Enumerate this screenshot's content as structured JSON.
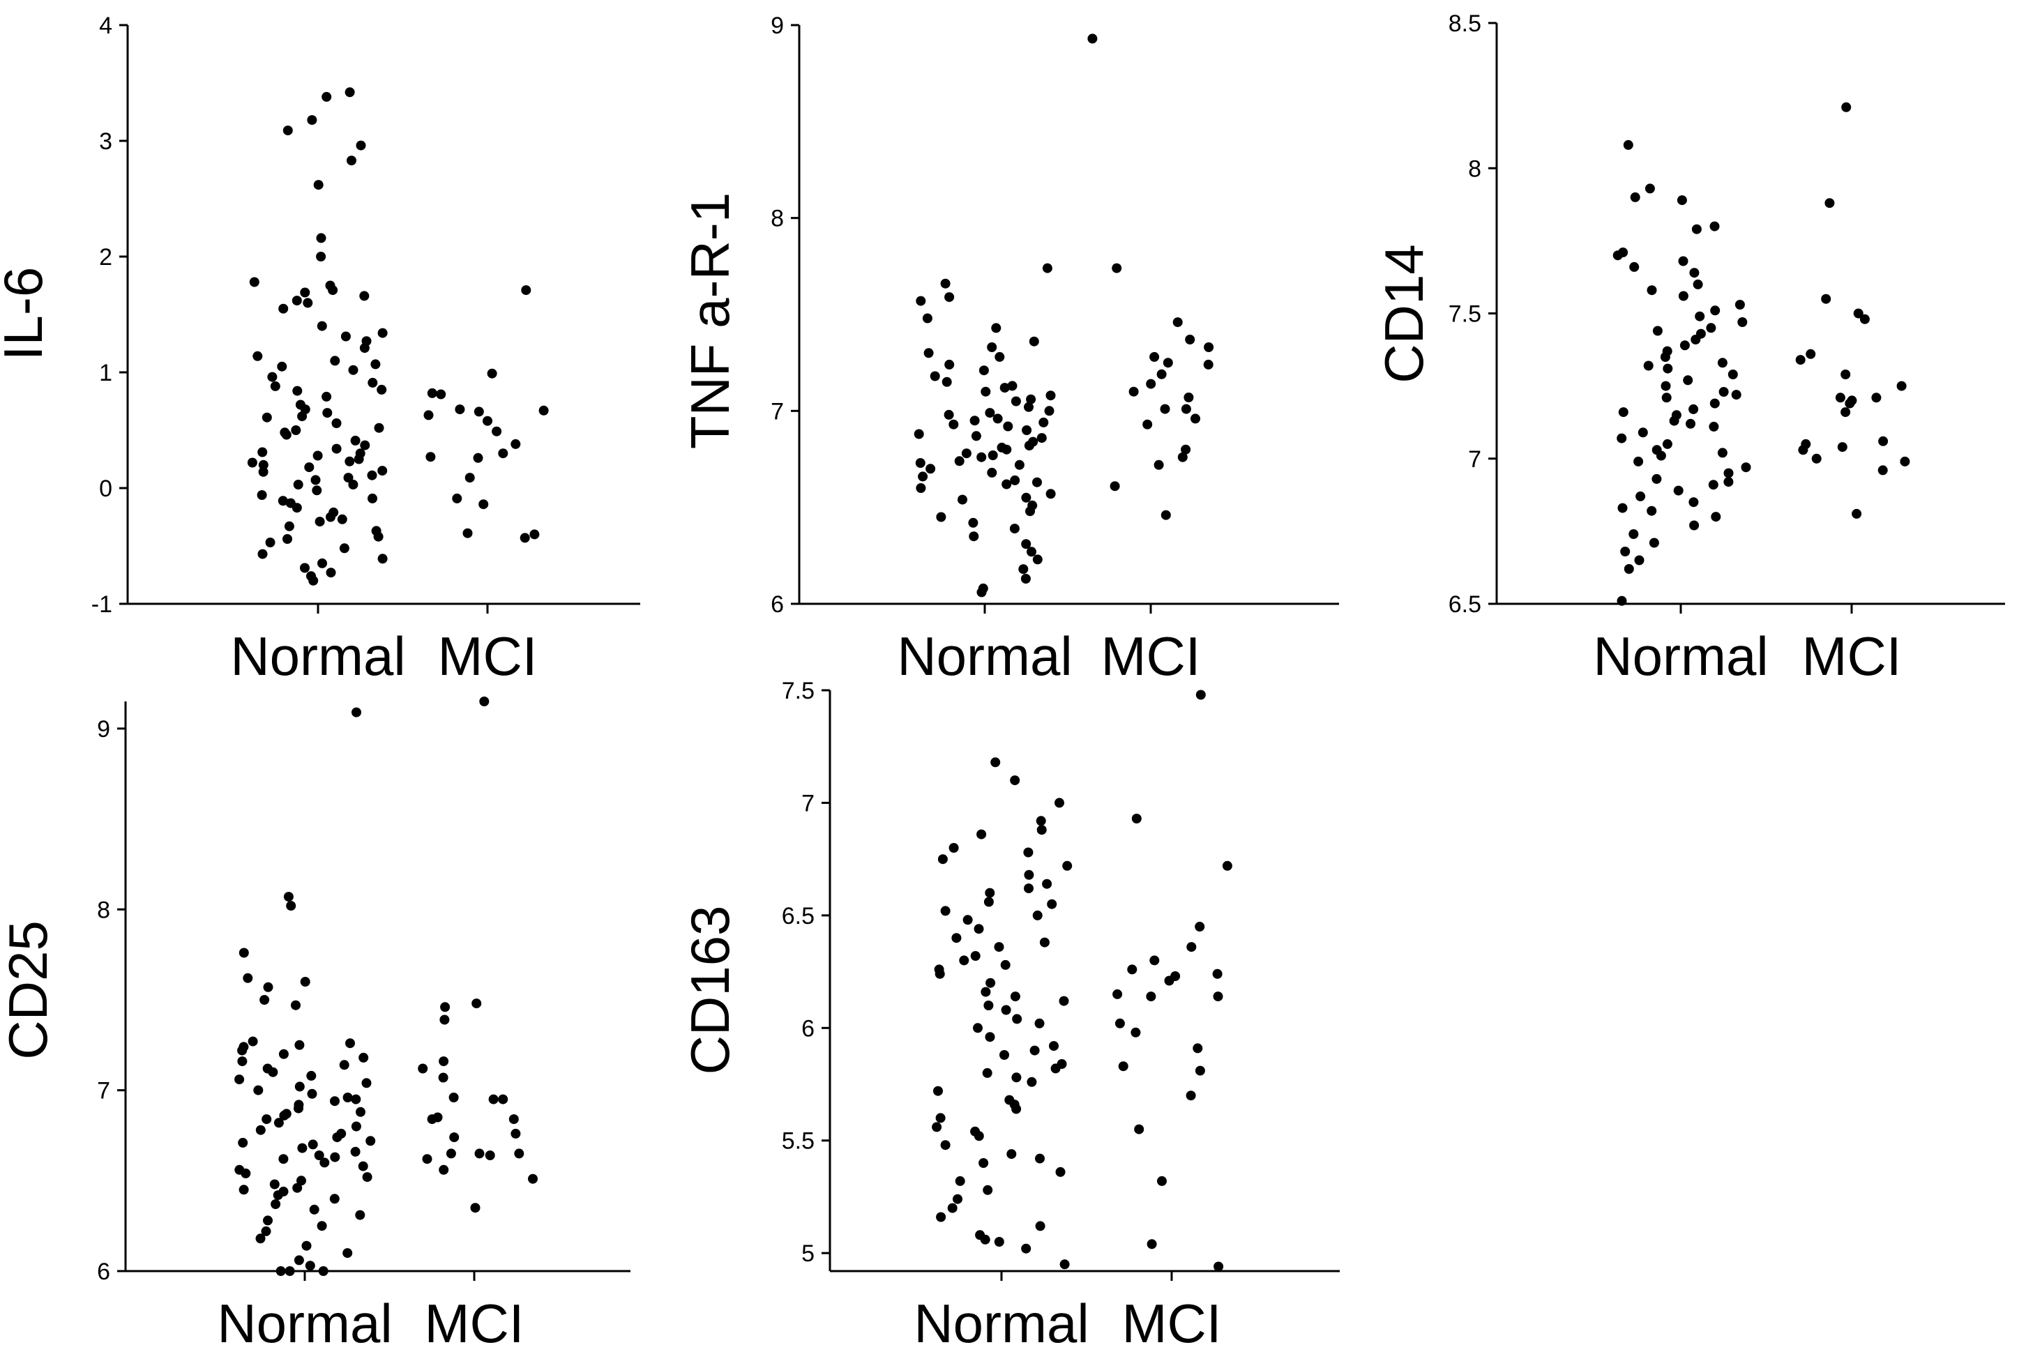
{
  "figure": {
    "categories": [
      "Normal",
      "MCI"
    ]
  },
  "chart_data": [
    {
      "type": "scatter",
      "title": "",
      "xlabel": "",
      "ylabel": "IL-6",
      "categories": [
        "Normal",
        "MCI"
      ],
      "ylim": [
        -1,
        4
      ],
      "yticks": [
        -1,
        0,
        1,
        2,
        3,
        4
      ],
      "ytick_labels": [
        "-1",
        "0",
        "1",
        "2",
        "3",
        "4"
      ],
      "series": [
        {
          "name": "Normal",
          "values": [
            3.42,
            3.38,
            3.18,
            3.09,
            2.96,
            2.83,
            2.62,
            2.16,
            2.0,
            1.78,
            1.75,
            1.71,
            1.69,
            1.66,
            1.62,
            1.6,
            1.55,
            1.34,
            1.31,
            1.27,
            1.21,
            1.14,
            1.1,
            1.07,
            1.05,
            1.02,
            0.96,
            0.91,
            0.88,
            0.84,
            0.79,
            0.72,
            0.68,
            0.65,
            0.61,
            0.56,
            0.52,
            0.48,
            0.46,
            0.41,
            0.37,
            0.34,
            0.31,
            0.28,
            0.25,
            0.23,
            0.2,
            0.18,
            0.15,
            0.11,
            0.07,
            0.03,
            -0.02,
            -0.06,
            -0.09,
            -0.13,
            -0.17,
            -0.21,
            -0.25,
            -0.29,
            -0.33,
            -0.37,
            -0.42,
            -0.47,
            -0.52,
            -0.57,
            -0.61,
            -0.65,
            -0.69,
            -0.73,
            -0.76,
            -0.8,
            0.22,
            0.09,
            0.5,
            -0.11,
            0.3,
            0.85,
            -0.44,
            0.14,
            1.4,
            0.62,
            -0.27,
            0.03
          ]
        },
        {
          "name": "MCI",
          "values": [
            1.71,
            0.99,
            0.82,
            0.81,
            0.68,
            0.67,
            0.66,
            0.63,
            0.58,
            0.49,
            0.38,
            0.3,
            0.27,
            0.26,
            0.09,
            -0.09,
            -0.14,
            -0.39,
            -0.4,
            -0.43
          ]
        }
      ]
    },
    {
      "type": "scatter",
      "title": "",
      "xlabel": "",
      "ylabel": "TNF a-R-1",
      "categories": [
        "Normal",
        "MCI"
      ],
      "ylim": [
        6,
        9
      ],
      "yticks": [
        6,
        7,
        8,
        9
      ],
      "ytick_labels": [
        "6",
        "7",
        "8",
        "9"
      ],
      "series": [
        {
          "name": "Normal",
          "values": [
            7.74,
            7.66,
            7.59,
            7.57,
            7.48,
            7.43,
            7.36,
            7.33,
            7.3,
            7.28,
            7.24,
            7.21,
            7.18,
            7.15,
            7.12,
            7.1,
            7.08,
            7.05,
            7.02,
            7.0,
            6.98,
            6.96,
            6.94,
            6.92,
            6.9,
            6.88,
            6.86,
            6.84,
            6.82,
            6.8,
            6.78,
            6.76,
            6.74,
            6.72,
            6.7,
            6.68,
            6.66,
            6.64,
            6.62,
            6.6,
            6.57,
            6.54,
            6.51,
            6.48,
            6.45,
            6.42,
            6.39,
            6.35,
            6.31,
            6.27,
            6.23,
            6.18,
            6.13,
            6.08,
            6.06,
            6.99,
            6.87,
            6.73,
            7.06,
            6.93,
            6.81,
            6.63,
            7.13,
            6.95,
            6.77,
            6.55
          ]
        },
        {
          "name": "MCI",
          "values": [
            8.93,
            7.74,
            7.46,
            7.37,
            7.33,
            7.28,
            7.25,
            7.24,
            7.19,
            7.14,
            7.1,
            7.07,
            7.01,
            7.01,
            6.96,
            6.93,
            6.8,
            6.76,
            6.72,
            6.61,
            6.46
          ]
        }
      ]
    },
    {
      "type": "scatter",
      "title": "",
      "xlabel": "",
      "ylabel": "CD14",
      "categories": [
        "Normal",
        "MCI"
      ],
      "ylim": [
        6.5,
        8.5
      ],
      "yticks": [
        6.5,
        7,
        7.5,
        8,
        8.5
      ],
      "ytick_labels": [
        "6.5",
        "7",
        "7.5",
        "8",
        "8.5"
      ],
      "series": [
        {
          "name": "Normal",
          "values": [
            8.08,
            7.93,
            7.9,
            7.89,
            7.8,
            7.79,
            7.71,
            7.7,
            7.68,
            7.66,
            7.64,
            7.6,
            7.58,
            7.56,
            7.53,
            7.51,
            7.49,
            7.47,
            7.45,
            7.43,
            7.41,
            7.39,
            7.37,
            7.35,
            7.33,
            7.31,
            7.29,
            7.27,
            7.25,
            7.23,
            7.21,
            7.19,
            7.17,
            7.15,
            7.13,
            7.11,
            7.09,
            7.07,
            7.05,
            7.03,
            7.01,
            6.99,
            6.97,
            6.95,
            6.93,
            6.91,
            6.89,
            6.87,
            6.85,
            6.83,
            6.8,
            6.77,
            6.74,
            6.71,
            6.68,
            6.65,
            6.62,
            6.51,
            7.22,
            7.12,
            7.02,
            7.32,
            6.92,
            7.44,
            7.16,
            6.82
          ]
        },
        {
          "name": "MCI",
          "values": [
            8.21,
            7.88,
            7.55,
            7.5,
            7.48,
            7.36,
            7.34,
            7.29,
            7.25,
            7.21,
            7.21,
            7.2,
            7.19,
            7.16,
            7.06,
            7.05,
            7.04,
            7.03,
            7.0,
            6.99,
            6.96,
            6.81
          ]
        }
      ]
    },
    {
      "type": "scatter",
      "title": "",
      "xlabel": "",
      "ylabel": "CD25",
      "categories": [
        "Normal",
        "MCI"
      ],
      "ylim": [
        6,
        9.15
      ],
      "yticks": [
        6,
        7,
        8,
        9
      ],
      "ytick_labels": [
        "6",
        "7",
        "8",
        "9"
      ],
      "series": [
        {
          "name": "Normal",
          "values": [
            9.09,
            8.07,
            8.02,
            7.76,
            7.62,
            7.6,
            7.57,
            7.5,
            7.47,
            7.27,
            7.26,
            7.25,
            7.24,
            7.22,
            7.2,
            7.18,
            7.16,
            7.14,
            7.12,
            7.1,
            7.08,
            7.06,
            7.04,
            7.02,
            7.0,
            6.98,
            6.96,
            6.94,
            6.92,
            6.9,
            6.88,
            6.86,
            6.84,
            6.82,
            6.8,
            6.78,
            6.76,
            6.74,
            6.72,
            6.7,
            6.68,
            6.66,
            6.64,
            6.62,
            6.6,
            6.58,
            6.56,
            6.54,
            6.52,
            6.5,
            6.48,
            6.46,
            6.44,
            6.42,
            6.4,
            6.37,
            6.34,
            6.31,
            6.28,
            6.25,
            6.22,
            6.18,
            6.14,
            6.1,
            6.06,
            6.03,
            6.0,
            6.0,
            6.0,
            6.87,
            6.63,
            6.95,
            6.71,
            6.45
          ]
        },
        {
          "name": "MCI",
          "values": [
            9.15,
            7.48,
            7.46,
            7.39,
            7.16,
            7.12,
            7.07,
            6.96,
            6.95,
            6.95,
            6.85,
            6.84,
            6.84,
            6.76,
            6.74,
            6.65,
            6.65,
            6.65,
            6.64,
            6.62,
            6.56,
            6.51,
            6.35
          ]
        }
      ]
    },
    {
      "type": "scatter",
      "title": "",
      "xlabel": "",
      "ylabel": "CD163",
      "categories": [
        "Normal",
        "MCI"
      ],
      "ylim": [
        4.92,
        7.5
      ],
      "yticks": [
        5,
        5.5,
        6,
        6.5,
        7,
        7.5
      ],
      "ytick_labels": [
        "5",
        "5.5",
        "6",
        "6.5",
        "7",
        "7.5"
      ],
      "series": [
        {
          "name": "Normal",
          "values": [
            7.18,
            7.1,
            7.0,
            6.92,
            6.88,
            6.86,
            6.8,
            6.78,
            6.75,
            6.72,
            6.68,
            6.64,
            6.6,
            6.56,
            6.52,
            6.48,
            6.44,
            6.4,
            6.36,
            6.32,
            6.28,
            6.24,
            6.2,
            6.16,
            6.12,
            6.08,
            6.04,
            6.0,
            5.96,
            5.92,
            5.88,
            5.84,
            5.8,
            5.76,
            5.72,
            5.68,
            5.64,
            5.6,
            5.56,
            5.52,
            5.48,
            5.44,
            5.4,
            5.36,
            5.32,
            5.28,
            5.24,
            5.2,
            5.16,
            5.12,
            5.08,
            5.06,
            5.05,
            5.02,
            4.95,
            6.5,
            6.26,
            6.02,
            5.78,
            5.54,
            6.38,
            6.14,
            5.9,
            5.66,
            5.42,
            6.62,
            6.1,
            5.82,
            6.3,
            6.55
          ]
        },
        {
          "name": "MCI",
          "values": [
            7.48,
            6.93,
            6.72,
            6.45,
            6.36,
            6.3,
            6.26,
            6.24,
            6.23,
            6.21,
            6.15,
            6.14,
            6.14,
            6.02,
            5.98,
            5.91,
            5.83,
            5.81,
            5.7,
            5.55,
            5.32,
            5.04,
            4.94
          ]
        }
      ]
    }
  ]
}
